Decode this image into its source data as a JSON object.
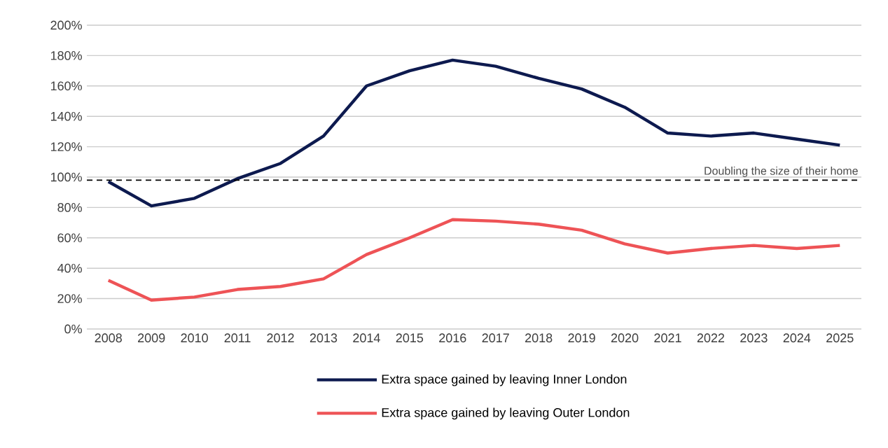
{
  "chart_data": {
    "type": "line",
    "categories": [
      "2008",
      "2009",
      "2010",
      "2011",
      "2012",
      "2013",
      "2014",
      "2015",
      "2016",
      "2017",
      "2018",
      "2019",
      "2020",
      "2021",
      "2022",
      "2023",
      "2024",
      "2025"
    ],
    "series": [
      {
        "name": "Extra space gained by leaving Inner London",
        "color": "#0d1a4f",
        "values": [
          97,
          81,
          86,
          99,
          109,
          127,
          160,
          170,
          177,
          173,
          165,
          158,
          146,
          129,
          127,
          129,
          125,
          121
        ]
      },
      {
        "name": "Extra space gained by leaving Outer London",
        "color": "#ee5356",
        "values": [
          32,
          19,
          21,
          26,
          28,
          33,
          49,
          60,
          72,
          71,
          69,
          65,
          56,
          50,
          53,
          55,
          53,
          55
        ]
      }
    ],
    "ylim": [
      0,
      200
    ],
    "yticks": [
      {
        "value": 0,
        "label": "0%"
      },
      {
        "value": 20,
        "label": "20%"
      },
      {
        "value": 40,
        "label": "40%"
      },
      {
        "value": 60,
        "label": "60%"
      },
      {
        "value": 80,
        "label": "80%"
      },
      {
        "value": 100,
        "label": "100%"
      },
      {
        "value": 120,
        "label": "120%"
      },
      {
        "value": 140,
        "label": "140%"
      },
      {
        "value": 160,
        "label": "160%"
      },
      {
        "value": 180,
        "label": "180%"
      },
      {
        "value": 200,
        "label": "200%"
      }
    ],
    "ref_lines": [
      {
        "axis": "y",
        "value": 98,
        "label": "Doubling the size of their home",
        "color": "#000000",
        "line_style": "dashed"
      }
    ],
    "grid": "y",
    "legend": "bottom",
    "marker": "none",
    "line_style": "solid"
  }
}
